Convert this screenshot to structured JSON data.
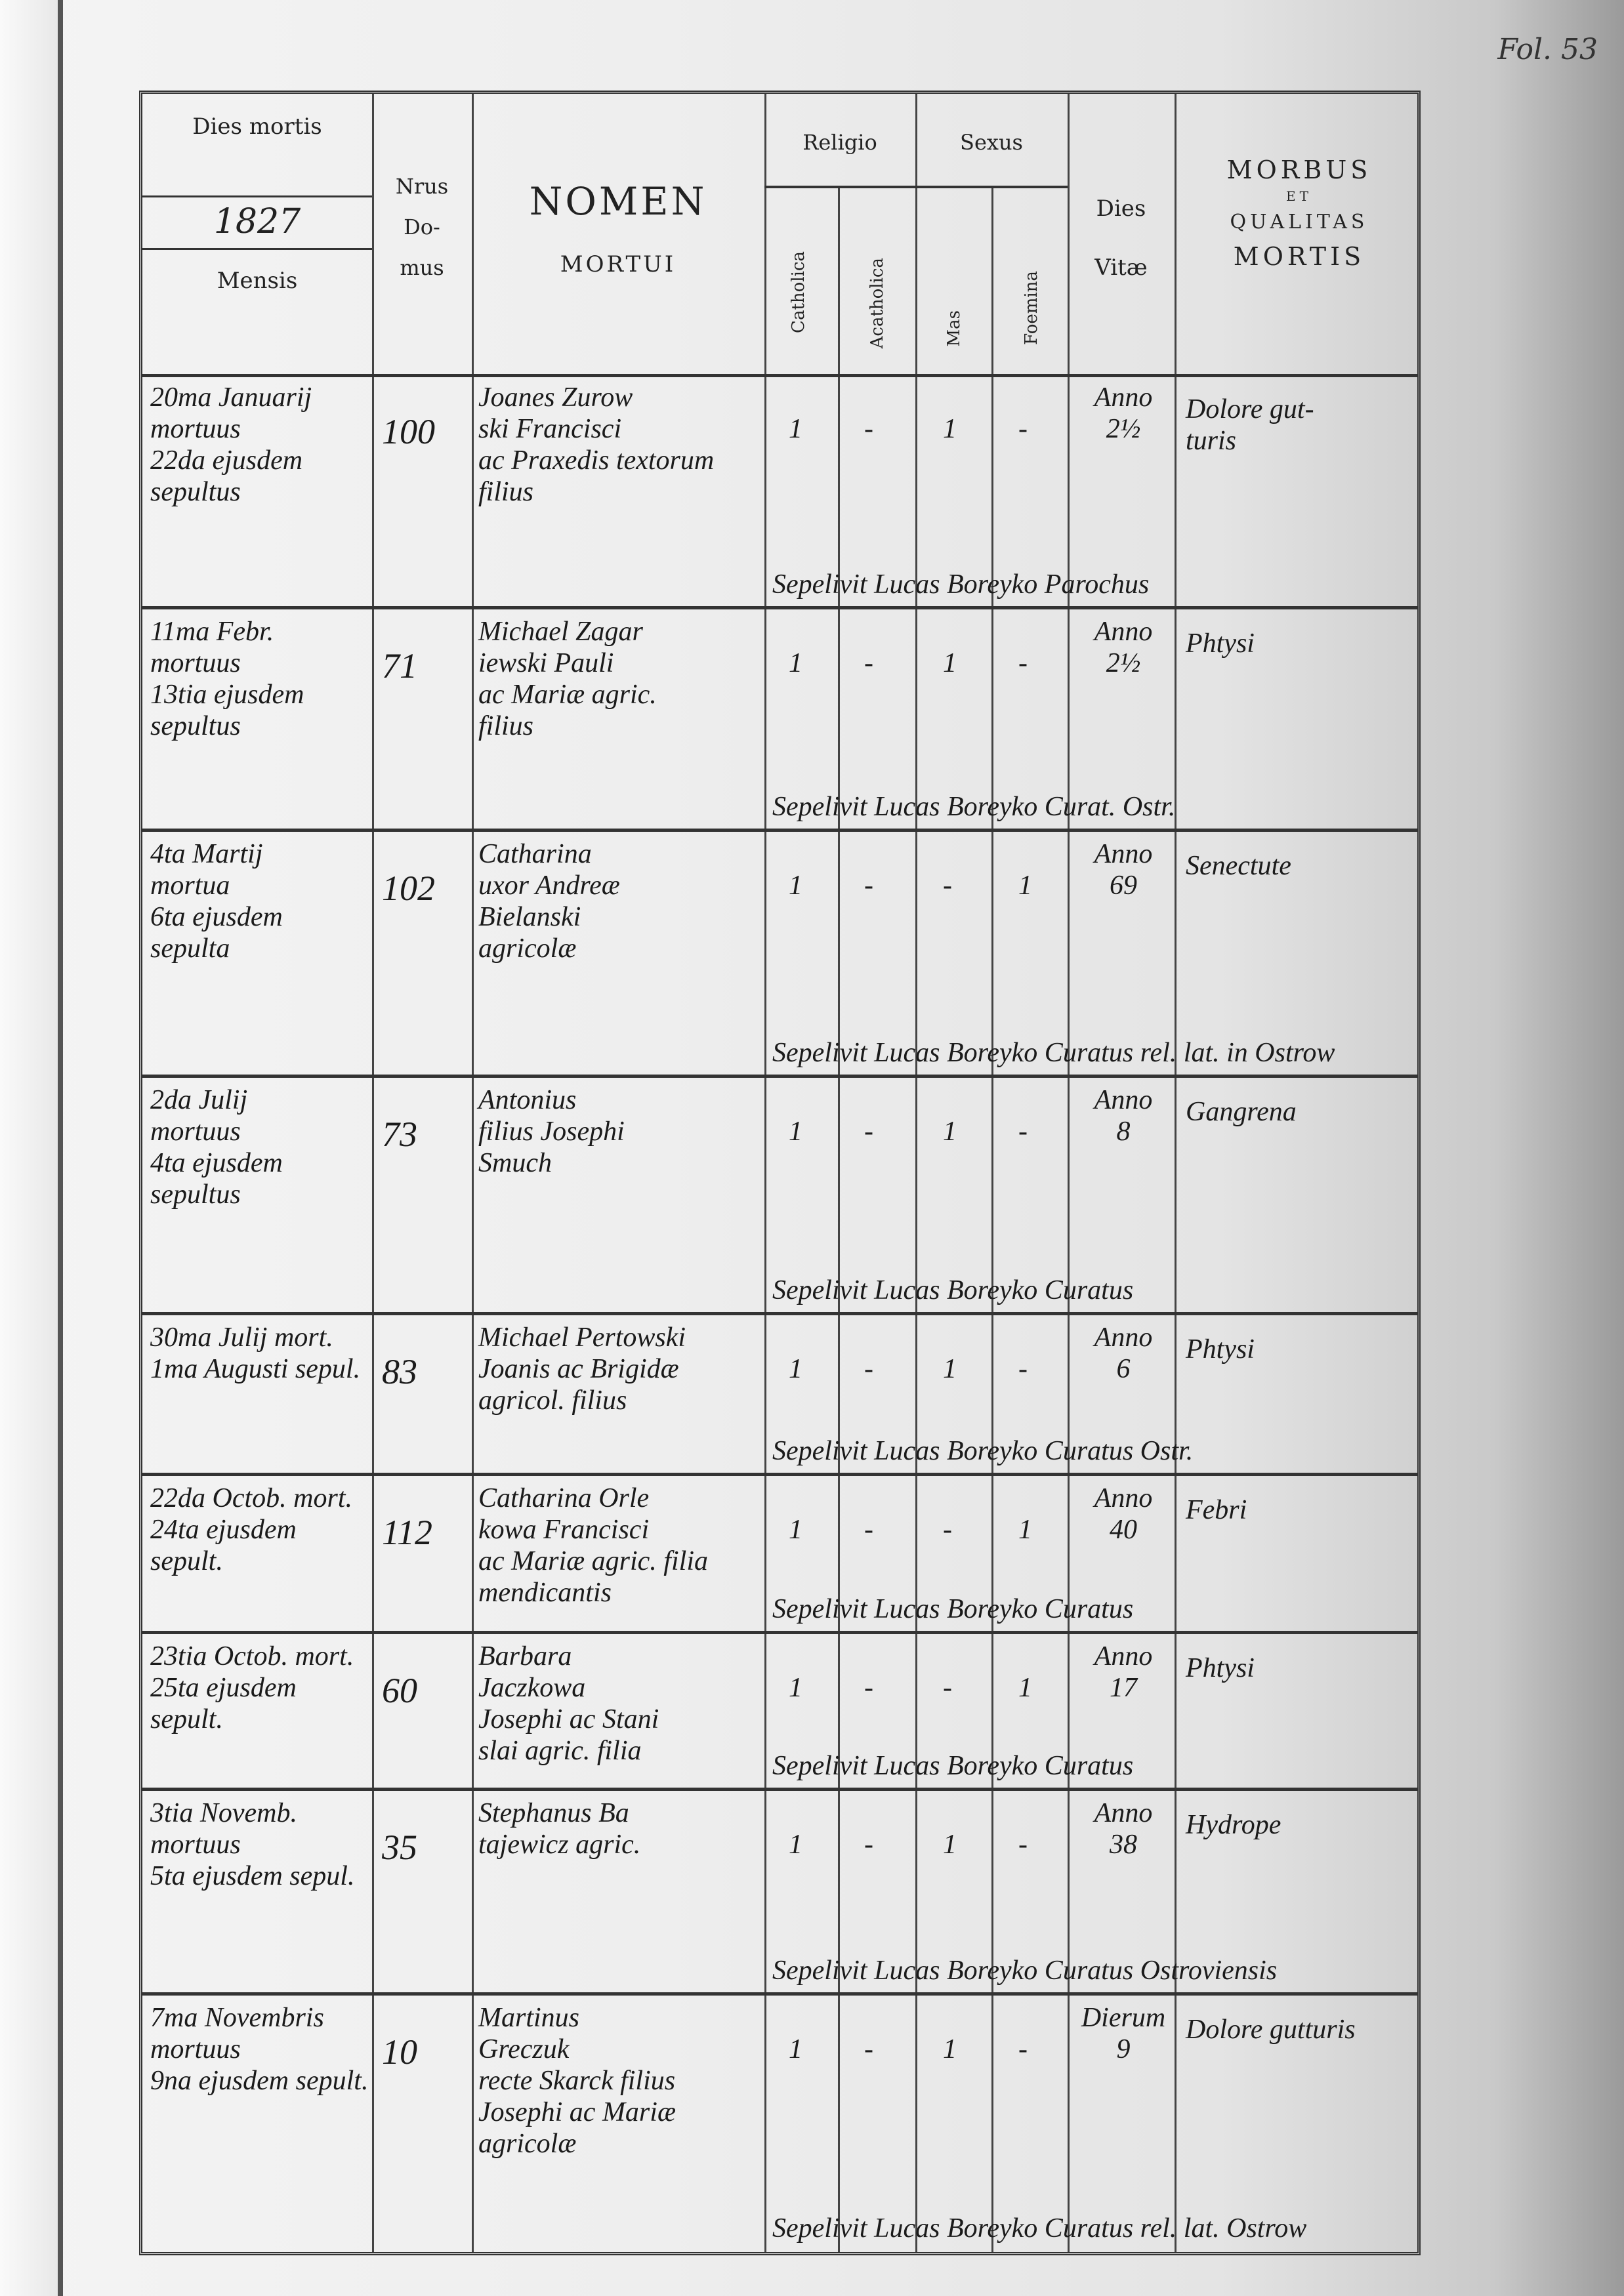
{
  "folio": "Fol. 53",
  "header": {
    "dies_mortis": "Dies mortis",
    "year": "1827",
    "mensis": "Mensis",
    "nrus_domus": [
      "Nrus",
      "Do-",
      "mus"
    ],
    "nomen": "NOMEN",
    "mortui": "MORTUI",
    "religio": "Religio",
    "sexus": "Sexus",
    "catholica": "Catholica",
    "acatholica": "Acatholica",
    "mas": "Mas",
    "foemina": "Foemina",
    "dies_vitae": [
      "Dies",
      "Vitæ"
    ],
    "morbus": [
      "MORBUS",
      "ET",
      "QUALITAS",
      "MORTIS"
    ]
  },
  "rows": [
    {
      "date": "20ma Januarij\nmortuus\n22da ejusdem\nsepultus",
      "domus": "100",
      "name": "Joanes Zurow\nski Francisci\nac Praxedis textorum\nfilius",
      "cath": "1",
      "acath": "-",
      "mas": "1",
      "foem": "-",
      "vita": "Anno\n2½",
      "morbus": "Dolore gut-\nturis",
      "sepultus": "Sepelivit Lucas Boreyko Parochus"
    },
    {
      "date": "11ma Febr.\nmortuus\n13tia ejusdem\nsepultus",
      "domus": "71",
      "name": "Michael Zagar\niewski Pauli\nac Mariæ agric.\nfilius",
      "cath": "1",
      "acath": "-",
      "mas": "1",
      "foem": "-",
      "vita": "Anno\n2½",
      "morbus": "Phtysi",
      "sepultus": "Sepelivit Lucas Boreyko Curat. Ostr."
    },
    {
      "date": "4ta Martij\nmortua\n6ta ejusdem\nsepulta",
      "domus": "102",
      "name": "Catharina\nuxor Andreæ\nBielanski\nagricolæ",
      "cath": "1",
      "acath": "-",
      "mas": "-",
      "foem": "1",
      "vita": "Anno\n69",
      "morbus": "Senectute",
      "sepultus": "Sepelivit Lucas Boreyko Curatus rel. lat. in Ostrow"
    },
    {
      "date": "2da Julij\nmortuus\n4ta ejusdem\nsepultus",
      "domus": "73",
      "name": "Antonius\nfilius Josephi\nSmuch",
      "cath": "1",
      "acath": "-",
      "mas": "1",
      "foem": "-",
      "vita": "Anno\n8",
      "morbus": "Gangrena",
      "sepultus": "Sepelivit Lucas Boreyko Curatus"
    },
    {
      "date": "30ma Julij mort.\n1ma Augusti sepul.",
      "domus": "83",
      "name": "Michael Pertowski\nJoanis ac Brigidæ\nagricol. filius",
      "cath": "1",
      "acath": "-",
      "mas": "1",
      "foem": "-",
      "vita": "Anno\n6",
      "morbus": "Phtysi",
      "sepultus": "Sepelivit Lucas Boreyko Curatus Ostr."
    },
    {
      "date": "22da Octob. mort.\n24ta ejusdem sepult.",
      "domus": "112",
      "name": "Catharina Orle\nkowa Francisci\nac Mariæ agric. filia\nmendicantis",
      "cath": "1",
      "acath": "-",
      "mas": "-",
      "foem": "1",
      "vita": "Anno\n40",
      "morbus": "Febri",
      "sepultus": "Sepelivit Lucas Boreyko Curatus"
    },
    {
      "date": "23tia Octob. mort.\n25ta ejusdem sepult.",
      "domus": "60",
      "name": "Barbara\nJaczkowa\nJosephi ac Stani\nslai agric. filia",
      "cath": "1",
      "acath": "-",
      "mas": "-",
      "foem": "1",
      "vita": "Anno\n17",
      "morbus": "Phtysi",
      "sepultus": "Sepelivit Lucas Boreyko Curatus"
    },
    {
      "date": "3tia Novemb.\nmortuus\n5ta ejusdem sepul.",
      "domus": "35",
      "name": "Stephanus Ba\ntajewicz agric.",
      "cath": "1",
      "acath": "-",
      "mas": "1",
      "foem": "-",
      "vita": "Anno\n38",
      "morbus": "Hydrope",
      "sepultus": "Sepelivit Lucas Boreyko Curatus Ostroviensis"
    },
    {
      "date": "7ma Novembris\nmortuus\n9na ejusdem sepult.",
      "domus": "10",
      "name": "Martinus\nGreczuk\nrecte Skarck filius\nJosephi ac Mariæ\nagricolæ",
      "cath": "1",
      "acath": "-",
      "mas": "1",
      "foem": "-",
      "vita": "Dierum\n9",
      "morbus": "Dolore gutturis",
      "sepultus": "Sepelivit Lucas Boreyko Curatus rel. lat. Ostrow"
    }
  ]
}
